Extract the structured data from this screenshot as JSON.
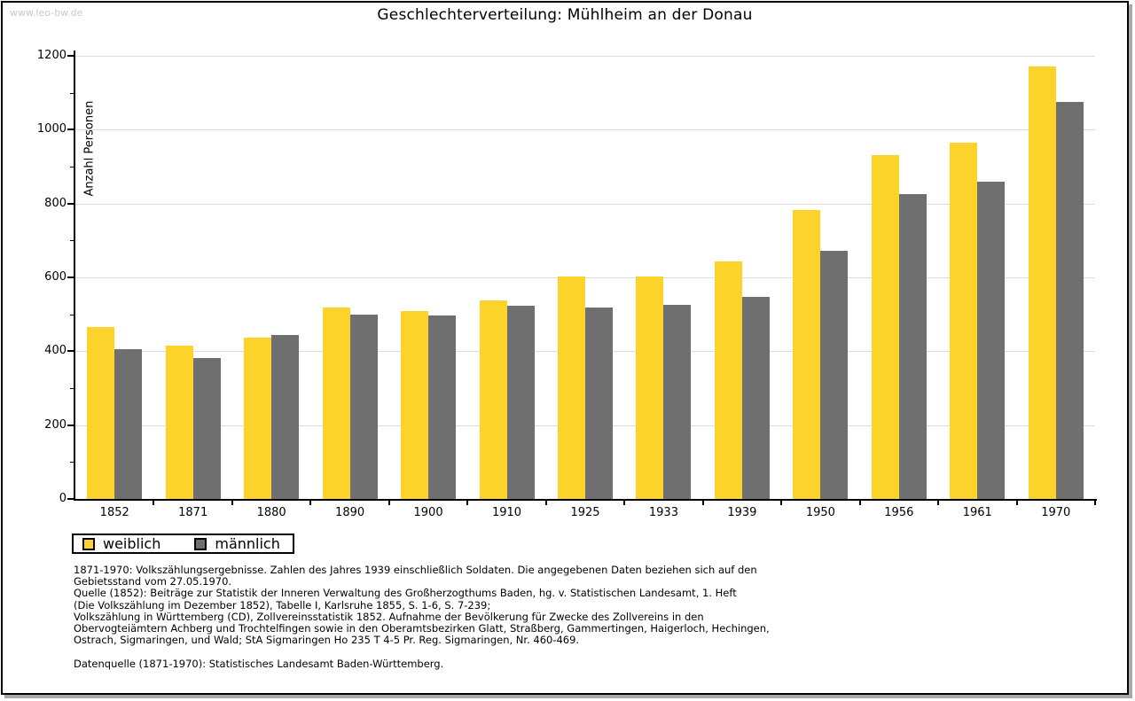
{
  "page": {
    "watermark": "www.leo-bw.de",
    "title": "Geschlechterverteilung: Mühlheim an der Donau"
  },
  "chart_data": {
    "type": "bar",
    "title": "Geschlechterverteilung: Mühlheim an der Donau",
    "xlabel": "",
    "ylabel": "Anzahl Personen",
    "ylim": [
      0,
      1200
    ],
    "y_tick_step": 200,
    "y_minor_tick_step": 100,
    "grid": "horizontal-only",
    "legend_position": "bottom-left",
    "categories": [
      "1852",
      "1871",
      "1880",
      "1890",
      "1900",
      "1910",
      "1925",
      "1933",
      "1939",
      "1950",
      "1956",
      "1961",
      "1970"
    ],
    "series": [
      {
        "name": "weiblich",
        "color": "#fcd32b",
        "values": [
          465,
          415,
          437,
          518,
          510,
          538,
          603,
          603,
          643,
          783,
          932,
          966,
          1172
        ]
      },
      {
        "name": "männlich",
        "color": "#6f6f6f",
        "values": [
          405,
          382,
          444,
          499,
          496,
          523,
          519,
          525,
          548,
          671,
          825,
          860,
          1075
        ]
      }
    ],
    "colors": {
      "gridline": "#dcdcdc",
      "axis": "#000000",
      "watermark": "#c9c9c9"
    }
  },
  "footnotes": {
    "lines": [
      "1871-1970: Volkszählungsergebnisse. Zahlen des Jahres 1939 einschließlich Soldaten. Die angegebenen Daten beziehen sich auf den",
      "Gebietsstand vom 27.05.1970.",
      "Quelle (1852): Beiträge zur Statistik der Inneren Verwaltung des Großherzogthums Baden, hg. v. Statistischen Landesamt, 1. Heft",
      "(Die Volkszählung im Dezember 1852), Tabelle I, Karlsruhe 1855, S. 1-6, S. 7-239;",
      "Volkszählung in Württemberg (CD), Zollvereinsstatistik 1852. Aufnahme der Bevölkerung für Zwecke des Zollvereins in den",
      "Obervogteiämtern Achberg und Trochtelfingen sowie in den Oberamtsbezirken Glatt, Straßberg, Gammertingen, Haigerloch, Hechingen,",
      "Ostrach, Sigmaringen, und Wald; StA Sigmaringen Ho 235 T 4-5 Pr. Reg. Sigmaringen, Nr. 460-469."
    ],
    "datasource": "Datenquelle (1871-1970): Statistisches Landesamt Baden-Württemberg."
  }
}
